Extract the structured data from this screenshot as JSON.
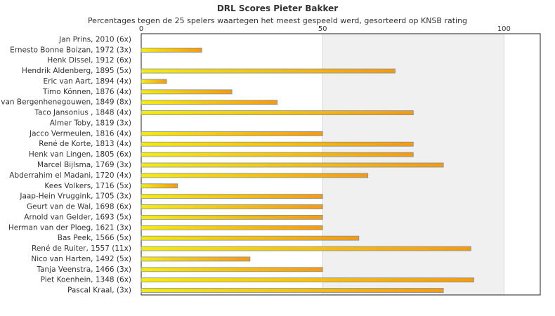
{
  "chart_data": {
    "type": "bar",
    "orientation": "horizontal",
    "title": "DRL Scores Pieter Bakker",
    "subtitle": "Percentages tegen de 25 spelers waartegen het meest gespeeld werd, gesorteerd op KNSB rating",
    "xlim": [
      0,
      110
    ],
    "xticks": [
      "0",
      "50",
      "100"
    ],
    "tick_values": [
      0,
      50,
      100
    ],
    "axis_position": "top",
    "colors": {
      "bar_left": "#f5ea10",
      "bar_right": "#f59a10",
      "bar_border": "#7a8fa8",
      "band": "#f0f0f0",
      "grid": "#d8d8d8"
    },
    "categories": [
      "Jan Prins, 2010 (6x)",
      "Ernesto Bonne Boizan, 1972 (3x)",
      "Henk Dissel, 1912 (6x)",
      "Hendrik Aldenberg, 1895 (5x)",
      "Eric van Aart, 1894 (4x)",
      "Timo Können, 1876 (4x)",
      "van Bergenhenegouwen, 1849 (8x)",
      "Taco Jansonius , 1848 (4x)",
      "Almer Toby, 1819 (3x)",
      "Jacco Vermeulen, 1816 (4x)",
      "René de Korte, 1813 (4x)",
      "Henk van Lingen, 1805 (6x)",
      "Marcel Bijlsma, 1769 (3x)",
      "Abderrahim el Madani, 1720 (4x)",
      "Kees Volkers, 1716 (5x)",
      "Jaap-Hein Vruggink, 1705 (3x)",
      "Geurt van de Wal, 1698 (6x)",
      "Arnold van Gelder, 1693 (5x)",
      "Herman van der Ploeg, 1621 (3x)",
      "Bas Peek, 1566 (5x)",
      "René de Ruiter, 1557 (11x)",
      "Nico van Harten, 1492 (5x)",
      "Tanja Veenstra, 1466 (3x)",
      "Piet Koenhein, 1348 (6x)",
      "Pascal Kraal,  (3x)"
    ],
    "values": [
      0,
      16.7,
      0,
      70,
      7,
      25,
      37.5,
      75,
      0,
      50,
      75,
      75,
      83.3,
      62.5,
      10,
      50,
      50,
      50,
      50,
      60,
      90.9,
      30,
      50,
      91.7,
      83.3
    ]
  }
}
